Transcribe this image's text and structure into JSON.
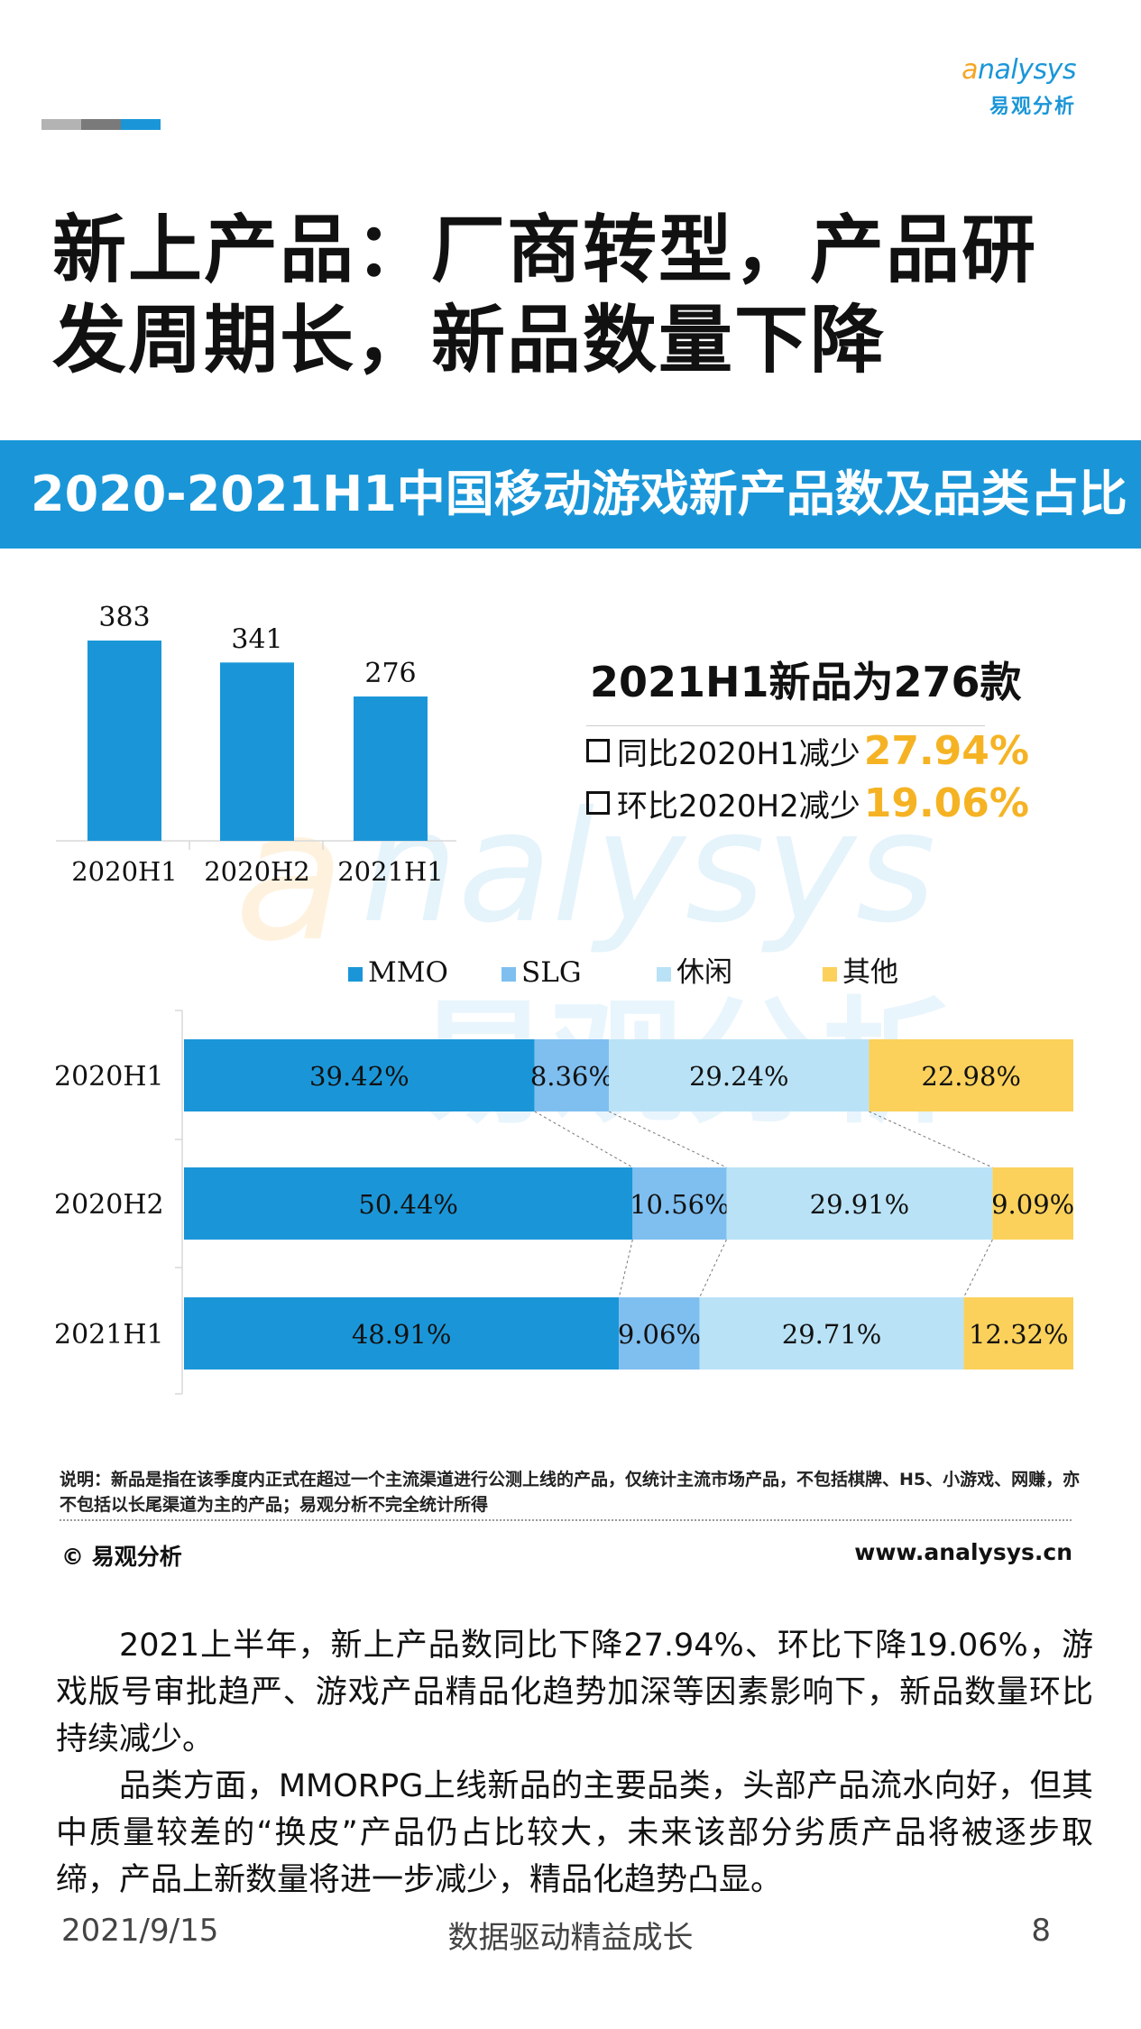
{
  "logo": {
    "brand_first": "a",
    "brand_rest": "nalysys",
    "cn": "易观分析"
  },
  "colors": {
    "mmo": "#1a96d8",
    "slg": "#7fbff0",
    "casual": "#b9e2f6",
    "other": "#fbd15b",
    "accent": "#f5b324",
    "banner": "#1a96d8"
  },
  "title": "新上产品：厂商转型，产品研发周期长，新品数量下降",
  "chart_banner": "2020-2021H1中国移动游戏新产品数及品类占比",
  "summary": {
    "title": "2021H1新品为276款",
    "yoy_label": "同比2020H1减少",
    "yoy_value": "27.94%",
    "qoq_label": "环比2020H2减少",
    "qoq_value": "19.06%"
  },
  "chart_data": [
    {
      "type": "bar",
      "categories": [
        "2020H1",
        "2020H2",
        "2021H1"
      ],
      "values": [
        383,
        341,
        276
      ],
      "data_labels": [
        "383",
        "341",
        "276"
      ],
      "ylim": [
        0,
        400
      ],
      "grid": false,
      "legend": "none"
    },
    {
      "type": "bar",
      "orientation": "horizontal",
      "stacked": "percent",
      "categories": [
        "2020H1",
        "2020H2",
        "2021H1"
      ],
      "series": [
        {
          "name": "MMO",
          "values": [
            39.42,
            50.44,
            48.91
          ],
          "labels": [
            "39.42%",
            "50.44%",
            "48.91%"
          ]
        },
        {
          "name": "SLG",
          "values": [
            8.36,
            10.56,
            9.06
          ],
          "labels": [
            "8.36%",
            "10.56%",
            "9.06%"
          ]
        },
        {
          "name": "休闲",
          "values": [
            29.24,
            29.91,
            29.71
          ],
          "labels": [
            "29.24%",
            "29.91%",
            "29.71%"
          ]
        },
        {
          "name": "其他",
          "values": [
            22.98,
            9.09,
            12.32
          ],
          "labels": [
            "22.98%",
            "9.09%",
            "12.32%"
          ]
        }
      ],
      "xlim": [
        0,
        100
      ],
      "legend": "top"
    }
  ],
  "note": "说明：新品是指在该季度内正式在超过一个主流渠道进行公测上线的产品，仅统计主流市场产品，不包括棋牌、H5、小游戏、网赚，亦不包括以长尾渠道为主的产品；易观分析不完全统计所得",
  "copyright": "© 易观分析",
  "website": "www.analysys.cn",
  "body": [
    "2021上半年，新上产品数同比下降27.94%、环比下降19.06%，游戏版号审批趋严、游戏产品精品化趋势加深等因素影响下，新品数量环比持续减少。",
    "品类方面，MMORPG上线新品的主要品类，头部产品流水向好，但其中质量较差的“换皮”产品仍占比较大，未来该部分劣质产品将被逐步取缔，产品上新数量将进一步减少，精品化趋势凸显。"
  ],
  "footer": {
    "date": "2021/9/15",
    "slogan": "数据驱动精益成长",
    "page": "8"
  }
}
